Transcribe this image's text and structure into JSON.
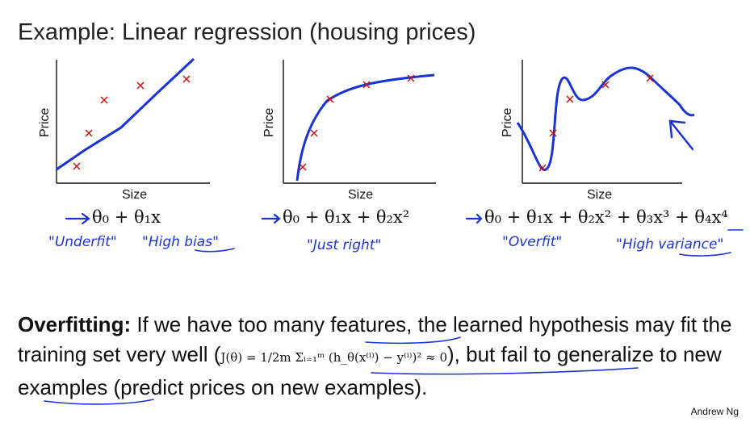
{
  "title": "Example: Linear regression (housing prices)",
  "plots": [
    {
      "xlabel": "Size",
      "ylabel": "Price",
      "formula": "θ₀ + θ₁x",
      "notes": [
        "\"Underfit\"",
        "\"High bias\""
      ]
    },
    {
      "xlabel": "Size",
      "ylabel": "Price",
      "formula": "θ₀ + θ₁x + θ₂x²",
      "notes": [
        "\"Just right\""
      ]
    },
    {
      "xlabel": "Size",
      "ylabel": "Price",
      "formula": "θ₀ + θ₁x + θ₂x² + θ₃x³ + θ₄x⁴",
      "notes": [
        "\"Overfit\"",
        "\"High variance\""
      ]
    }
  ],
  "bottom": {
    "bold": "Overfitting:",
    "text1": " If we have too many features, the learned hypothesis may fit the training set very well (",
    "math": "J(θ) = 1/2m Σᵢ₌₁ᵐ (h_θ(x⁽ⁱ⁾) − y⁽ⁱ⁾)² ≈ 0",
    "text2": "), but fail to generalize to new examples (predict prices on new examples)."
  },
  "author": "Andrew Ng",
  "colors": {
    "curve": "#1a33d6",
    "points": "#cc1111",
    "text": "#111111"
  }
}
